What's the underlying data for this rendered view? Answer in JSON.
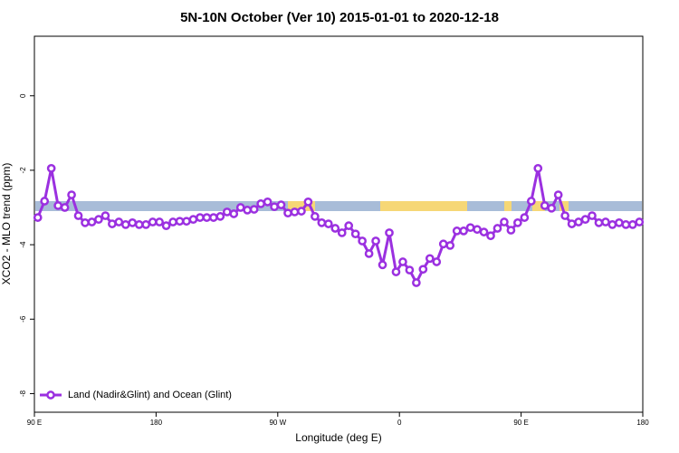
{
  "chart_data": {
    "type": "line",
    "title": "5N-10N October (Ver 10)   2015-01-01 to 2020-12-18",
    "xlabel": "Longitude (deg E)",
    "ylabel": "XCO2 - MLO trend (ppm)",
    "x": [
      92.5,
      97.5,
      102.5,
      107.5,
      112.5,
      117.5,
      122.5,
      127.5,
      132.5,
      137.5,
      142.5,
      147.5,
      152.5,
      157.5,
      162.5,
      167.5,
      172.5,
      177.5,
      182.5,
      187.5,
      192.5,
      197.5,
      202.5,
      207.5,
      212.5,
      217.5,
      222.5,
      227.5,
      232.5,
      237.5,
      242.5,
      247.5,
      252.5,
      257.5,
      262.5,
      267.5,
      272.5,
      277.5,
      282.5,
      287.5,
      292.5,
      297.5,
      302.5,
      307.5,
      312.5,
      317.5,
      322.5,
      327.5,
      332.5,
      337.5,
      342.5,
      347.5,
      352.5,
      357.5,
      362.5,
      367.5,
      372.5,
      377.5,
      382.5,
      387.5,
      392.5,
      397.5,
      402.5,
      407.5,
      412.5,
      417.5,
      422.5,
      427.5,
      432.5,
      437.5,
      442.5,
      447.5,
      452.5,
      457.5,
      462.5,
      467.5,
      472.5,
      477.5,
      482.5,
      487.5,
      492.5,
      497.5,
      502.5,
      507.5,
      512.5,
      517.5,
      522.5,
      527.5,
      532.5,
      537.5
    ],
    "series": [
      {
        "name": "Land (Nadir&Glint) and Ocean (Glint)",
        "color": "#9b30e0",
        "values": [
          -3.27,
          -2.83,
          -1.95,
          -2.95,
          -3.0,
          -2.66,
          -3.22,
          -3.41,
          -3.39,
          -3.32,
          -3.22,
          -3.44,
          -3.39,
          -3.46,
          -3.41,
          -3.46,
          -3.46,
          -3.39,
          -3.39,
          -3.49,
          -3.39,
          -3.37,
          -3.37,
          -3.32,
          -3.27,
          -3.27,
          -3.27,
          -3.24,
          -3.12,
          -3.17,
          -3.0,
          -3.07,
          -3.05,
          -2.9,
          -2.85,
          -2.98,
          -2.93,
          -3.15,
          -3.12,
          -3.1,
          -2.85,
          -3.24,
          -3.41,
          -3.44,
          -3.56,
          -3.68,
          -3.49,
          -3.71,
          -3.9,
          -4.24,
          -3.9,
          -4.54,
          -3.68,
          -4.73,
          -4.46,
          -4.68,
          -5.02,
          -4.66,
          -4.37,
          -4.46,
          -3.98,
          -4.02,
          -3.63,
          -3.63,
          -3.54,
          -3.59,
          -3.66,
          -3.76,
          -3.56,
          -3.39,
          -3.61,
          -3.41,
          -3.27,
          -2.83,
          -1.95,
          -2.95,
          -3.02,
          -2.66,
          -3.22,
          -3.44,
          -3.39,
          -3.32,
          -3.22,
          -3.41,
          -3.39,
          -3.46,
          -3.41,
          -3.46,
          -3.46,
          -3.39
        ]
      }
    ],
    "xlim": [
      90,
      540
    ],
    "xticks": [
      {
        "value": 90,
        "label": "90 E"
      },
      180,
      {
        "value": 270,
        "label": "90 W"
      },
      {
        "value": 360,
        "label": "0"
      },
      {
        "value": 450,
        "label": "90 E"
      },
      {
        "value": 540,
        "label": "180"
      }
    ],
    "ylim": [
      -8.5,
      1.6
    ],
    "yticks": [
      0,
      -2,
      -4,
      -6,
      -8
    ],
    "legend": "lower left"
  }
}
